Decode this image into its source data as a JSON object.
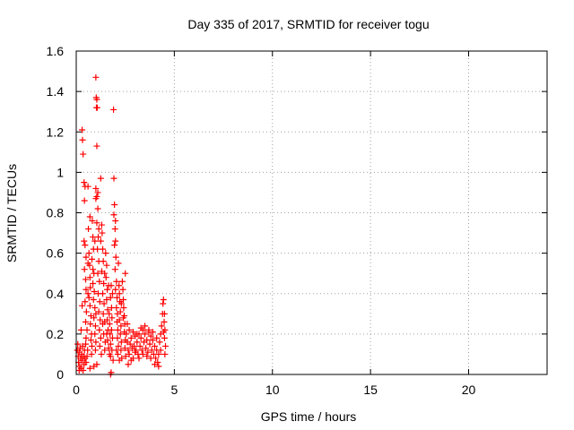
{
  "chart_data": {
    "type": "scatter",
    "title": "Day 335 of 2017, SRMTID for receiver togu",
    "xlabel": "GPS time / hours",
    "ylabel": "SRMTID / TECUs",
    "xlim": [
      0,
      24
    ],
    "ylim": [
      0,
      1.6
    ],
    "xticks": [
      0,
      5,
      10,
      15,
      20
    ],
    "yticks": [
      0,
      0.2,
      0.4,
      0.6,
      0.8,
      1,
      1.2,
      1.4,
      1.6
    ],
    "xtick_labels": [
      "0",
      "5",
      "10",
      "15",
      "20"
    ],
    "ytick_labels": [
      "0",
      "0.2",
      "0.4",
      "0.6",
      "0.8",
      "1",
      "1.2",
      "1.4",
      "1.6"
    ],
    "grid": true,
    "marker": "plus",
    "color": "#ff0000",
    "series": [
      {
        "name": "SRMTID",
        "points": [
          [
            0.05,
            0.12
          ],
          [
            0.08,
            0.15
          ],
          [
            0.1,
            0.09
          ],
          [
            0.12,
            0.06
          ],
          [
            0.15,
            0.11
          ],
          [
            0.18,
            0.04
          ],
          [
            0.2,
            0.13
          ],
          [
            0.22,
            0.08
          ],
          [
            0.25,
            0.03
          ],
          [
            0.28,
            0.1
          ],
          [
            0.3,
            0.07
          ],
          [
            0.32,
            0.14
          ],
          [
            0.35,
            0.02
          ],
          [
            0.38,
            0.09
          ],
          [
            0.4,
            0.05
          ],
          [
            0.42,
            0.12
          ],
          [
            0.45,
            0.08
          ],
          [
            0.48,
            0.15
          ],
          [
            0.5,
            0.06
          ],
          [
            0.15,
            0.02
          ],
          [
            0.3,
            1.21
          ],
          [
            0.32,
            1.16
          ],
          [
            0.35,
            1.09
          ],
          [
            0.4,
            0.95
          ],
          [
            0.45,
            0.93
          ],
          [
            0.42,
            0.86
          ],
          [
            0.4,
            0.66
          ],
          [
            0.45,
            0.64
          ],
          [
            0.5,
            0.58
          ],
          [
            0.42,
            0.52
          ],
          [
            0.48,
            0.47
          ],
          [
            0.5,
            0.42
          ],
          [
            0.45,
            0.36
          ],
          [
            0.52,
            0.31
          ],
          [
            0.48,
            0.26
          ],
          [
            0.55,
            0.22
          ],
          [
            0.5,
            0.18
          ],
          [
            0.58,
            0.12
          ],
          [
            0.55,
            0.09
          ],
          [
            0.6,
            0.55
          ],
          [
            0.6,
            0.93
          ],
          [
            0.62,
            0.72
          ],
          [
            0.65,
            0.6
          ],
          [
            0.68,
            0.54
          ],
          [
            0.7,
            0.48
          ],
          [
            0.72,
            0.43
          ],
          [
            0.65,
            0.38
          ],
          [
            0.7,
            0.34
          ],
          [
            0.75,
            0.29
          ],
          [
            0.72,
            0.25
          ],
          [
            0.78,
            0.2
          ],
          [
            0.75,
            0.17
          ],
          [
            0.8,
            0.14
          ],
          [
            0.78,
            0.1
          ],
          [
            0.82,
            0.76
          ],
          [
            0.85,
            0.68
          ],
          [
            0.88,
            0.62
          ],
          [
            0.8,
            0.57
          ],
          [
            0.9,
            0.5
          ],
          [
            0.85,
            0.45
          ],
          [
            0.92,
            0.41
          ],
          [
            0.88,
            0.37
          ],
          [
            0.95,
            0.33
          ],
          [
            0.9,
            0.28
          ],
          [
            0.98,
            0.24
          ],
          [
            0.95,
            0.2
          ],
          [
            1.0,
            0.16
          ],
          [
            0.98,
            0.12
          ],
          [
            0.9,
            0.04
          ],
          [
            0.7,
            0.03
          ],
          [
            1.0,
            1.47
          ],
          [
            1.02,
            1.37
          ],
          [
            1.05,
            1.36
          ],
          [
            1.03,
            1.32
          ],
          [
            1.07,
            1.32
          ],
          [
            1.05,
            1.13
          ],
          [
            1.0,
            0.92
          ],
          [
            1.05,
            0.88
          ],
          [
            1.1,
            0.9
          ],
          [
            1.0,
            0.87
          ],
          [
            1.1,
            0.82
          ],
          [
            1.05,
            0.75
          ],
          [
            1.12,
            0.68
          ],
          [
            1.08,
            0.62
          ],
          [
            1.15,
            0.56
          ],
          [
            1.1,
            0.5
          ],
          [
            1.18,
            0.46
          ],
          [
            1.12,
            0.4
          ],
          [
            1.2,
            0.36
          ],
          [
            1.15,
            0.31
          ],
          [
            1.22,
            0.27
          ],
          [
            1.18,
            0.22
          ],
          [
            1.25,
            0.18
          ],
          [
            1.2,
            0.14
          ],
          [
            1.28,
            0.1
          ],
          [
            1.05,
            0.05
          ],
          [
            1.25,
            0.97
          ],
          [
            1.3,
            0.74
          ],
          [
            1.32,
            0.7
          ],
          [
            1.35,
            0.62
          ],
          [
            1.38,
            0.56
          ],
          [
            1.3,
            0.51
          ],
          [
            1.4,
            0.45
          ],
          [
            1.35,
            0.4
          ],
          [
            1.42,
            0.35
          ],
          [
            1.38,
            0.3
          ],
          [
            1.45,
            0.26
          ],
          [
            1.4,
            0.2
          ],
          [
            1.48,
            0.16
          ],
          [
            1.45,
            0.12
          ],
          [
            1.5,
            0.6
          ],
          [
            1.55,
            0.54
          ],
          [
            1.52,
            0.48
          ],
          [
            1.58,
            0.42
          ],
          [
            1.55,
            0.37
          ],
          [
            1.6,
            0.32
          ],
          [
            1.58,
            0.27
          ],
          [
            1.62,
            0.22
          ],
          [
            1.6,
            0.17
          ],
          [
            1.65,
            0.13
          ],
          [
            1.68,
            0.3
          ],
          [
            1.7,
            0.25
          ],
          [
            1.72,
            0.2
          ],
          [
            1.75,
            0.15
          ],
          [
            1.7,
            0.1
          ],
          [
            1.78,
            0.44
          ],
          [
            1.75,
            0.38
          ],
          [
            1.8,
            0.33
          ],
          [
            1.82,
            0.28
          ],
          [
            1.8,
            0.22
          ],
          [
            1.85,
            0.18
          ],
          [
            1.82,
            0.12
          ],
          [
            1.88,
            0.07
          ],
          [
            1.9,
            1.31
          ],
          [
            1.92,
            0.97
          ],
          [
            1.95,
            0.84
          ],
          [
            1.92,
            0.79
          ],
          [
            2.0,
            0.76
          ],
          [
            1.98,
            0.72
          ],
          [
            2.0,
            0.66
          ],
          [
            1.95,
            0.64
          ],
          [
            2.02,
            0.58
          ],
          [
            1.98,
            0.52
          ],
          [
            2.05,
            0.46
          ],
          [
            2.0,
            0.42
          ],
          [
            2.08,
            0.38
          ],
          [
            2.05,
            0.33
          ],
          [
            2.1,
            0.3
          ],
          [
            2.08,
            0.26
          ],
          [
            2.12,
            0.22
          ],
          [
            2.1,
            0.18
          ],
          [
            2.15,
            0.14
          ],
          [
            2.12,
            0.1
          ],
          [
            2.18,
            0.44
          ],
          [
            2.2,
            0.4
          ],
          [
            2.22,
            0.36
          ],
          [
            2.25,
            0.31
          ],
          [
            2.2,
            0.27
          ],
          [
            2.28,
            0.24
          ],
          [
            2.25,
            0.2
          ],
          [
            2.3,
            0.16
          ],
          [
            2.28,
            0.12
          ],
          [
            2.32,
            0.08
          ],
          [
            2.35,
            0.46
          ],
          [
            2.38,
            0.42
          ],
          [
            2.4,
            0.37
          ],
          [
            2.42,
            0.33
          ],
          [
            2.45,
            0.29
          ],
          [
            2.48,
            0.25
          ],
          [
            2.5,
            0.5
          ],
          [
            2.45,
            0.21
          ],
          [
            2.5,
            0.17
          ],
          [
            2.48,
            0.13
          ],
          [
            2.52,
            0.09
          ],
          [
            2.55,
            0.2
          ],
          [
            2.6,
            0.16
          ],
          [
            2.65,
            0.12
          ],
          [
            2.7,
            0.1
          ],
          [
            2.75,
            0.15
          ],
          [
            2.8,
            0.18
          ],
          [
            2.85,
            0.13
          ],
          [
            2.9,
            0.08
          ],
          [
            2.95,
            0.14
          ],
          [
            3.0,
            0.19
          ],
          [
            3.05,
            0.12
          ],
          [
            3.1,
            0.16
          ],
          [
            3.15,
            0.1
          ],
          [
            3.2,
            0.2
          ],
          [
            3.25,
            0.14
          ],
          [
            3.3,
            0.18
          ],
          [
            3.35,
            0.12
          ],
          [
            3.4,
            0.22
          ],
          [
            3.45,
            0.16
          ],
          [
            3.5,
            0.2
          ],
          [
            3.55,
            0.13
          ],
          [
            3.6,
            0.17
          ],
          [
            3.65,
            0.11
          ],
          [
            3.7,
            0.21
          ],
          [
            3.75,
            0.15
          ],
          [
            3.8,
            0.19
          ],
          [
            3.85,
            0.12
          ],
          [
            3.9,
            0.17
          ],
          [
            3.95,
            0.1
          ],
          [
            4.0,
            0.14
          ],
          [
            4.05,
            0.08
          ],
          [
            4.1,
            0.12
          ],
          [
            4.15,
            0.06
          ],
          [
            4.2,
            0.1
          ],
          [
            4.25,
            0.16
          ],
          [
            4.3,
            0.2
          ],
          [
            4.35,
            0.24
          ],
          [
            4.4,
            0.3
          ],
          [
            4.42,
            0.35
          ],
          [
            4.45,
            0.37
          ],
          [
            4.5,
            0.3
          ],
          [
            4.48,
            0.26
          ],
          [
            4.52,
            0.22
          ],
          [
            4.5,
            0.18
          ],
          [
            4.55,
            0.14
          ],
          [
            4.52,
            0.1
          ],
          [
            2.7,
            0.22
          ],
          [
            2.9,
            0.21
          ],
          [
            3.1,
            0.2
          ],
          [
            3.3,
            0.23
          ],
          [
            3.5,
            0.24
          ],
          [
            3.7,
            0.22
          ],
          [
            3.9,
            0.21
          ],
          [
            2.8,
            0.07
          ],
          [
            3.2,
            0.08
          ],
          [
            3.6,
            0.09
          ],
          [
            4.0,
            0.05
          ],
          [
            4.2,
            0.04
          ],
          [
            3.0,
            0.11
          ],
          [
            3.4,
            0.1
          ],
          [
            3.8,
            0.08
          ],
          [
            2.6,
            0.25
          ],
          [
            2.65,
            0.05
          ],
          [
            4.45,
            0.21
          ],
          [
            4.3,
            0.12
          ],
          [
            4.1,
            0.18
          ],
          [
            0.7,
            0.78
          ],
          [
            0.95,
            0.66
          ],
          [
            1.15,
            0.72
          ],
          [
            1.25,
            0.66
          ],
          [
            1.45,
            0.5
          ],
          [
            1.65,
            0.44
          ],
          [
            1.85,
            0.4
          ],
          [
            2.15,
            0.55
          ],
          [
            2.3,
            0.35
          ],
          [
            2.4,
            0.28
          ],
          [
            0.6,
            0.4
          ],
          [
            0.85,
            0.52
          ],
          [
            1.0,
            0.3
          ],
          [
            1.35,
            0.25
          ],
          [
            1.55,
            0.2
          ],
          [
            1.75,
            0.09
          ],
          [
            2.05,
            0.12
          ],
          [
            2.2,
            0.07
          ],
          [
            0.3,
            0.34
          ],
          [
            0.25,
            0.22
          ],
          [
            1.75,
            0.0
          ],
          [
            1.78,
            0.01
          ]
        ]
      }
    ]
  }
}
